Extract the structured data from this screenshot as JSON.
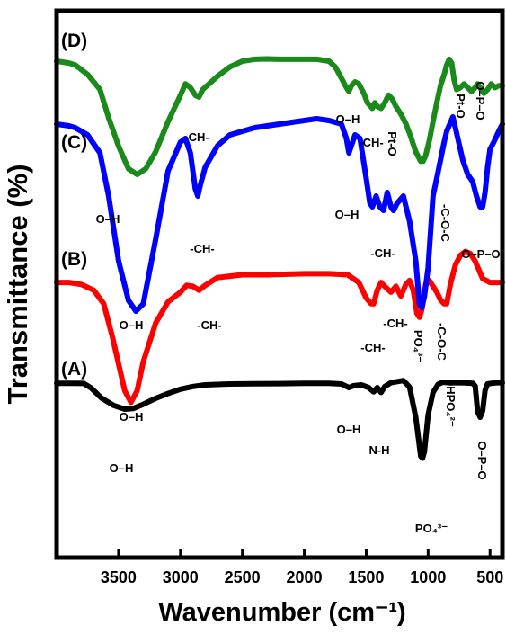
{
  "chart_data": {
    "type": "line",
    "xlabel": "Wavenumber (cm⁻¹)",
    "ylabel": "Transmittance (%)",
    "xlim": [
      4000,
      400
    ],
    "x_ticks": [
      3500,
      3000,
      2500,
      2000,
      1500,
      1000,
      500
    ],
    "x_tick_labels": [
      "3500",
      "3000",
      "2500",
      "2000",
      "1500",
      "1000",
      "500"
    ],
    "grid": false,
    "legend": "none",
    "series": [
      {
        "label": "(A)",
        "color": "#000000",
        "points": [
          [
            4000,
            0.115
          ],
          [
            3850,
            0.115
          ],
          [
            3780,
            0.113
          ],
          [
            3720,
            0.07
          ],
          [
            3640,
            -0.02
          ],
          [
            3540,
            -0.09
          ],
          [
            3450,
            -0.125
          ],
          [
            3380,
            -0.118
          ],
          [
            3300,
            -0.08
          ],
          [
            3200,
            -0.025
          ],
          [
            3100,
            0.02
          ],
          [
            3000,
            0.06
          ],
          [
            2900,
            0.085
          ],
          [
            2800,
            0.1
          ],
          [
            2600,
            0.108
          ],
          [
            2400,
            0.11
          ],
          [
            2200,
            0.112
          ],
          [
            2000,
            0.114
          ],
          [
            1800,
            0.115
          ],
          [
            1700,
            0.108
          ],
          [
            1640,
            0.075
          ],
          [
            1600,
            0.093
          ],
          [
            1540,
            0.1
          ],
          [
            1480,
            0.075
          ],
          [
            1440,
            0.035
          ],
          [
            1410,
            0.075
          ],
          [
            1380,
            0.03
          ],
          [
            1350,
            0.085
          ],
          [
            1300,
            0.12
          ],
          [
            1200,
            0.14
          ],
          [
            1150,
            0.08
          ],
          [
            1100,
            -0.2
          ],
          [
            1060,
            -0.56
          ],
          [
            1045,
            -0.58
          ],
          [
            1030,
            -0.52
          ],
          [
            1000,
            -0.18
          ],
          [
            960,
            0.03
          ],
          [
            920,
            0.105
          ],
          [
            880,
            0.125
          ],
          [
            820,
            0.118
          ],
          [
            760,
            0.12
          ],
          [
            700,
            0.118
          ],
          [
            640,
            0.115
          ],
          [
            620,
            0.09
          ],
          [
            600,
            -0.15
          ],
          [
            580,
            -0.2
          ],
          [
            560,
            -0.14
          ],
          [
            540,
            0.05
          ],
          [
            520,
            0.11
          ],
          [
            450,
            0.12
          ],
          [
            400,
            0.12
          ]
        ]
      },
      {
        "label": "(B)",
        "color": "#ff0000",
        "points": [
          [
            4000,
            0.06
          ],
          [
            3900,
            0.06
          ],
          [
            3800,
            0.05
          ],
          [
            3700,
            0.02
          ],
          [
            3620,
            -0.05
          ],
          [
            3550,
            -0.22
          ],
          [
            3450,
            -0.5
          ],
          [
            3400,
            -0.56
          ],
          [
            3350,
            -0.5
          ],
          [
            3300,
            -0.35
          ],
          [
            3200,
            -0.15
          ],
          [
            3100,
            -0.04
          ],
          [
            3000,
            0.01
          ],
          [
            2950,
            0.045
          ],
          [
            2900,
            0.04
          ],
          [
            2850,
            0.02
          ],
          [
            2800,
            0.045
          ],
          [
            2700,
            0.085
          ],
          [
            2500,
            0.1
          ],
          [
            2300,
            0.1
          ],
          [
            2000,
            0.105
          ],
          [
            1800,
            0.105
          ],
          [
            1650,
            0.1
          ],
          [
            1560,
            0.06
          ],
          [
            1500,
            -0.02
          ],
          [
            1460,
            -0.05
          ],
          [
            1440,
            -0.05
          ],
          [
            1410,
            0.02
          ],
          [
            1380,
            0.06
          ],
          [
            1350,
            0.04
          ],
          [
            1300,
            0.01
          ],
          [
            1260,
            0.04
          ],
          [
            1220,
            -0.01
          ],
          [
            1180,
            0.05
          ],
          [
            1150,
            0.07
          ],
          [
            1120,
            0.02
          ],
          [
            1090,
            -0.1
          ],
          [
            1070,
            -0.12
          ],
          [
            1050,
            -0.08
          ],
          [
            1020,
            0.05
          ],
          [
            990,
            0.07
          ],
          [
            960,
            0.04
          ],
          [
            930,
            0.01
          ],
          [
            900,
            -0.03
          ],
          [
            870,
            -0.05
          ],
          [
            850,
            -0.05
          ],
          [
            820,
            0.05
          ],
          [
            780,
            0.15
          ],
          [
            740,
            0.2
          ],
          [
            700,
            0.22
          ],
          [
            660,
            0.21
          ],
          [
            620,
            0.17
          ],
          [
            560,
            0.08
          ],
          [
            500,
            0.06
          ],
          [
            450,
            0.06
          ],
          [
            400,
            0.06
          ]
        ]
      },
      {
        "label": "(C)",
        "color": "#0000ff",
        "points": [
          [
            4000,
            0.1
          ],
          [
            3900,
            0.095
          ],
          [
            3850,
            0.09
          ],
          [
            3750,
            0.07
          ],
          [
            3650,
            0.02
          ],
          [
            3580,
            -0.1
          ],
          [
            3500,
            -0.28
          ],
          [
            3420,
            -0.39
          ],
          [
            3360,
            -0.42
          ],
          [
            3300,
            -0.4
          ],
          [
            3200,
            -0.22
          ],
          [
            3100,
            -0.03
          ],
          [
            3000,
            0.05
          ],
          [
            2960,
            0.06
          ],
          [
            2920,
            0.02
          ],
          [
            2880,
            -0.08
          ],
          [
            2860,
            -0.1
          ],
          [
            2840,
            -0.07
          ],
          [
            2800,
            -0.02
          ],
          [
            2700,
            0.04
          ],
          [
            2600,
            0.07
          ],
          [
            2400,
            0.09
          ],
          [
            2200,
            0.1
          ],
          [
            2000,
            0.11
          ],
          [
            1900,
            0.115
          ],
          [
            1800,
            0.11
          ],
          [
            1700,
            0.1
          ],
          [
            1660,
            0.06
          ],
          [
            1640,
            0.02
          ],
          [
            1610,
            0.05
          ],
          [
            1590,
            0.07
          ],
          [
            1550,
            0.06
          ],
          [
            1500,
            -0.05
          ],
          [
            1470,
            -0.12
          ],
          [
            1450,
            -0.13
          ],
          [
            1420,
            -0.1
          ],
          [
            1390,
            -0.13
          ],
          [
            1360,
            -0.14
          ],
          [
            1330,
            -0.09
          ],
          [
            1300,
            -0.13
          ],
          [
            1280,
            -0.14
          ],
          [
            1250,
            -0.12
          ],
          [
            1200,
            -0.1
          ],
          [
            1150,
            -0.17
          ],
          [
            1100,
            -0.28
          ],
          [
            1070,
            -0.4
          ],
          [
            1050,
            -0.41
          ],
          [
            1030,
            -0.38
          ],
          [
            1000,
            -0.3
          ],
          [
            960,
            -0.1
          ],
          [
            930,
            -0.05
          ],
          [
            900,
            0
          ],
          [
            870,
            0.05
          ],
          [
            850,
            0.08
          ],
          [
            800,
            0.12
          ],
          [
            760,
            0.06
          ],
          [
            720,
            0.0
          ],
          [
            680,
            -0.04
          ],
          [
            640,
            -0.06
          ],
          [
            610,
            -0.1
          ],
          [
            580,
            -0.13
          ],
          [
            560,
            -0.13
          ],
          [
            540,
            -0.09
          ],
          [
            520,
            -0.02
          ],
          [
            500,
            0.03
          ],
          [
            470,
            0.05
          ],
          [
            430,
            0.08
          ],
          [
            400,
            0.1
          ]
        ]
      },
      {
        "label": "(D)",
        "color": "#1a8a1a",
        "points": [
          [
            4000,
            0.2
          ],
          [
            3900,
            0.19
          ],
          [
            3850,
            0.18
          ],
          [
            3750,
            0.13
          ],
          [
            3650,
            0.05
          ],
          [
            3580,
            -0.1
          ],
          [
            3500,
            -0.25
          ],
          [
            3420,
            -0.37
          ],
          [
            3350,
            -0.4
          ],
          [
            3280,
            -0.37
          ],
          [
            3200,
            -0.28
          ],
          [
            3100,
            -0.12
          ],
          [
            3000,
            0.02
          ],
          [
            2960,
            0.08
          ],
          [
            2920,
            0.06
          ],
          [
            2880,
            0.02
          ],
          [
            2850,
            0.01
          ],
          [
            2820,
            0.05
          ],
          [
            2700,
            0.12
          ],
          [
            2600,
            0.17
          ],
          [
            2500,
            0.2
          ],
          [
            2400,
            0.21
          ],
          [
            2300,
            0.212
          ],
          [
            2200,
            0.21
          ],
          [
            2000,
            0.21
          ],
          [
            1900,
            0.21
          ],
          [
            1800,
            0.2
          ],
          [
            1750,
            0.17
          ],
          [
            1700,
            0.11
          ],
          [
            1660,
            0.06
          ],
          [
            1640,
            0.04
          ],
          [
            1620,
            0.07
          ],
          [
            1590,
            0.09
          ],
          [
            1560,
            0.08
          ],
          [
            1520,
            0.03
          ],
          [
            1490,
            -0.02
          ],
          [
            1450,
            -0.05
          ],
          [
            1430,
            -0.02
          ],
          [
            1410,
            -0.04
          ],
          [
            1380,
            -0.05
          ],
          [
            1350,
            -0.02
          ],
          [
            1320,
            0.02
          ],
          [
            1290,
            0.0
          ],
          [
            1260,
            -0.04
          ],
          [
            1220,
            -0.08
          ],
          [
            1180,
            -0.13
          ],
          [
            1140,
            -0.2
          ],
          [
            1100,
            -0.28
          ],
          [
            1060,
            -0.33
          ],
          [
            1040,
            -0.33
          ],
          [
            1020,
            -0.3
          ],
          [
            990,
            -0.22
          ],
          [
            960,
            -0.12
          ],
          [
            930,
            -0.02
          ],
          [
            900,
            0.07
          ],
          [
            870,
            0.13
          ],
          [
            850,
            0.18
          ],
          [
            830,
            0.21
          ],
          [
            810,
            0.19
          ],
          [
            790,
            0.1
          ],
          [
            770,
            0.05
          ],
          [
            740,
            0.06
          ],
          [
            710,
            0.08
          ],
          [
            680,
            0.06
          ],
          [
            650,
            0.04
          ],
          [
            620,
            0.06
          ],
          [
            600,
            0.08
          ],
          [
            580,
            0.06
          ],
          [
            550,
            0.03
          ],
          [
            520,
            0.05
          ],
          [
            490,
            0.08
          ],
          [
            460,
            0.06
          ],
          [
            430,
            0.07
          ],
          [
            400,
            0.07
          ]
        ]
      }
    ],
    "panel_labels": [
      "(A)",
      "(B)",
      "(C)",
      "(D)"
    ],
    "annotations": [
      {
        "text": "O–H",
        "series": "(A)",
        "x": 3420
      },
      {
        "text": "O–H",
        "series": "(A)",
        "x": 1600
      },
      {
        "text": "N-H",
        "series": "(A)",
        "x": 1410
      },
      {
        "text": "PO₄³⁻",
        "series": "(A)",
        "x": 1040
      },
      {
        "text": "HPO₄²⁻",
        "series": "(A)",
        "x": 880
      },
      {
        "text": "O–P–O",
        "series": "(A)",
        "x": 565
      },
      {
        "text": "O–H",
        "series": "(B)",
        "x": 3420
      },
      {
        "text": "-CH-",
        "series": "(B)",
        "x": 2780
      },
      {
        "text": "-CH-",
        "series": "(B)",
        "x": 1440
      },
      {
        "text": "-CH-",
        "series": "(B)",
        "x": 1260
      },
      {
        "text": "PO₄³⁻",
        "series": "(B)",
        "x": 1075
      },
      {
        "text": "-C-O-C",
        "series": "(B)",
        "x": 860
      },
      {
        "text": "O–H",
        "series": "(C)",
        "x": 3420
      },
      {
        "text": "-CH-",
        "series": "(C)",
        "x": 2850
      },
      {
        "text": "O–H",
        "series": "(C)",
        "x": 1660
      },
      {
        "text": "-CH-",
        "series": "(C)",
        "x": 1380
      },
      {
        "text": "-C-O-C",
        "series": "(C)",
        "x": 880
      },
      {
        "text": "O–P–O",
        "series": "(C)",
        "x": 560
      },
      {
        "text": "O–H",
        "series": "(D)",
        "x": 3360
      },
      {
        "text": "-CH-",
        "series": "(D)",
        "x": 2880
      },
      {
        "text": "O–H",
        "series": "(D)",
        "x": 1640
      },
      {
        "text": "-CH-",
        "series": "(D)",
        "x": 1430
      },
      {
        "text": "Pt-O",
        "series": "(D)",
        "x": 1300
      },
      {
        "text": "Pt-O",
        "series": "(D)",
        "x": 760
      },
      {
        "text": "O–P–O",
        "series": "(D)",
        "x": 600
      }
    ]
  }
}
